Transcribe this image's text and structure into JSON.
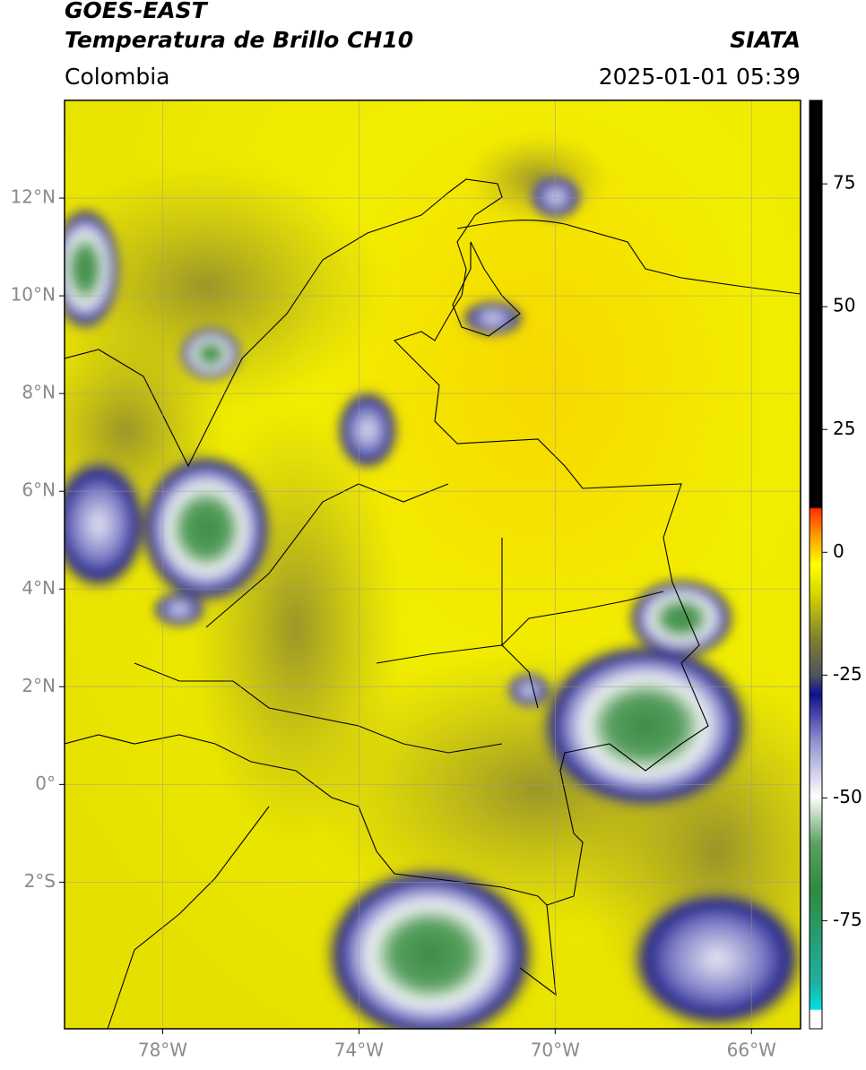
{
  "header": {
    "title": "GOES-EAST",
    "subtitle": "Temperatura de Brillo CH10",
    "region": "Colombia",
    "source": "SIATA",
    "timestamp": "2025-01-01 05:39"
  },
  "map": {
    "lonlim": [
      -80,
      -65
    ],
    "latlim": [
      -5,
      14
    ],
    "lon_ticks": [
      {
        "value": -78,
        "label": "78°W"
      },
      {
        "value": -74,
        "label": "74°W"
      },
      {
        "value": -70,
        "label": "70°W"
      },
      {
        "value": -66,
        "label": "66°W"
      }
    ],
    "lat_ticks": [
      {
        "value": 12,
        "label": "12°N"
      },
      {
        "value": 10,
        "label": "10°N"
      },
      {
        "value": 8,
        "label": "8°N"
      },
      {
        "value": 6,
        "label": "6°N"
      },
      {
        "value": 4,
        "label": "4°N"
      },
      {
        "value": 2,
        "label": "2°N"
      },
      {
        "value": 0,
        "label": "0°"
      },
      {
        "value": -2,
        "label": "2°S"
      }
    ]
  },
  "colorbar": {
    "lim": [
      -97,
      92
    ],
    "ticks": [
      75,
      50,
      25,
      0,
      -25,
      -50,
      -75
    ]
  }
}
